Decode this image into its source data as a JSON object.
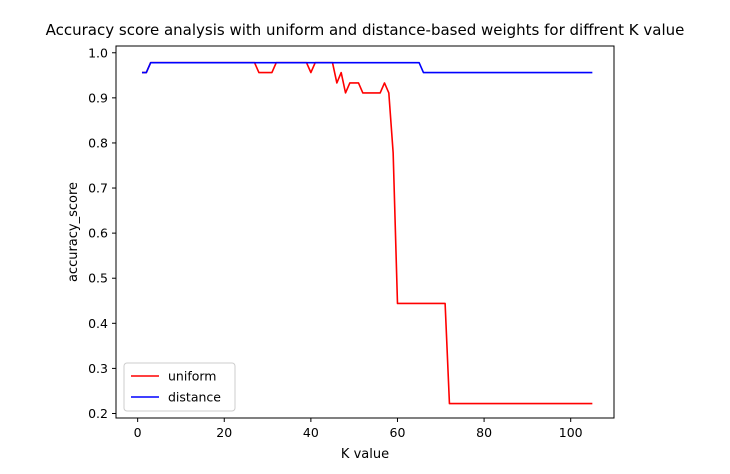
{
  "chart_data": {
    "type": "line",
    "title": "Accuracy score analysis with uniform and distance-based weights for diffrent K value",
    "xlabel": "K value",
    "ylabel": "accuracy_score",
    "xlim": [
      -5,
      110
    ],
    "ylim": [
      0.19,
      1.015
    ],
    "xticks": [
      0,
      20,
      40,
      60,
      80,
      100
    ],
    "yticks": [
      0.2,
      0.3,
      0.4,
      0.5,
      0.6,
      0.7,
      0.8,
      0.9,
      1.0
    ],
    "xtick_labels": [
      "0",
      "20",
      "40",
      "60",
      "80",
      "100"
    ],
    "ytick_labels": [
      "0.2",
      "0.3",
      "0.4",
      "0.5",
      "0.6",
      "0.7",
      "0.8",
      "0.9",
      "1.0"
    ],
    "grid": false,
    "legend_position": "lower-left",
    "series": [
      {
        "name": "uniform",
        "color": "#ff0000",
        "points": [
          [
            1,
            0.956
          ],
          [
            2,
            0.956
          ],
          [
            3,
            0.978
          ],
          [
            27,
            0.978
          ],
          [
            28,
            0.956
          ],
          [
            31,
            0.956
          ],
          [
            32,
            0.978
          ],
          [
            39,
            0.978
          ],
          [
            40,
            0.956
          ],
          [
            41,
            0.978
          ],
          [
            45,
            0.978
          ],
          [
            46,
            0.933
          ],
          [
            47,
            0.956
          ],
          [
            48,
            0.911
          ],
          [
            49,
            0.933
          ],
          [
            51,
            0.933
          ],
          [
            52,
            0.911
          ],
          [
            56,
            0.911
          ],
          [
            57,
            0.933
          ],
          [
            58,
            0.911
          ],
          [
            59,
            0.778
          ],
          [
            60,
            0.444
          ],
          [
            71,
            0.444
          ],
          [
            72,
            0.222
          ],
          [
            105,
            0.222
          ]
        ]
      },
      {
        "name": "distance",
        "color": "#0000ff",
        "points": [
          [
            1,
            0.956
          ],
          [
            2,
            0.956
          ],
          [
            3,
            0.978
          ],
          [
            65,
            0.978
          ],
          [
            66,
            0.956
          ],
          [
            105,
            0.956
          ]
        ]
      }
    ]
  }
}
